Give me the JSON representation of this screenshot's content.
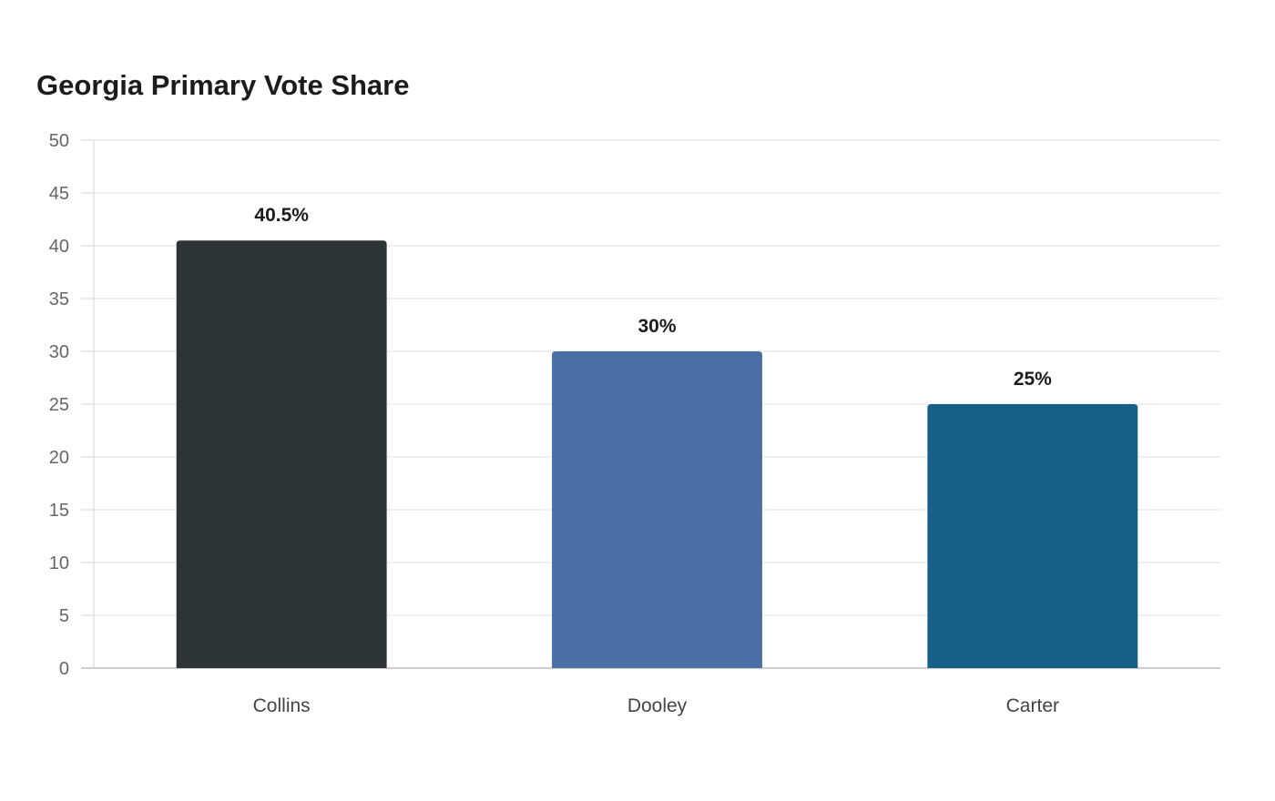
{
  "chart_data": {
    "type": "bar",
    "title": "Georgia Primary Vote Share",
    "xlabel": "",
    "ylabel": "",
    "categories": [
      "Collins",
      "Dooley",
      "Carter"
    ],
    "values": [
      40.5,
      30,
      25
    ],
    "data_labels": [
      "40.5%",
      "30%",
      "25%"
    ],
    "colors": [
      "#2d3436",
      "#4a6fa5",
      "#166088"
    ],
    "ylim": [
      0,
      50
    ],
    "yticks": [
      0,
      5,
      10,
      15,
      20,
      25,
      30,
      35,
      40,
      45,
      50
    ],
    "grid": true,
    "legend": "none"
  }
}
